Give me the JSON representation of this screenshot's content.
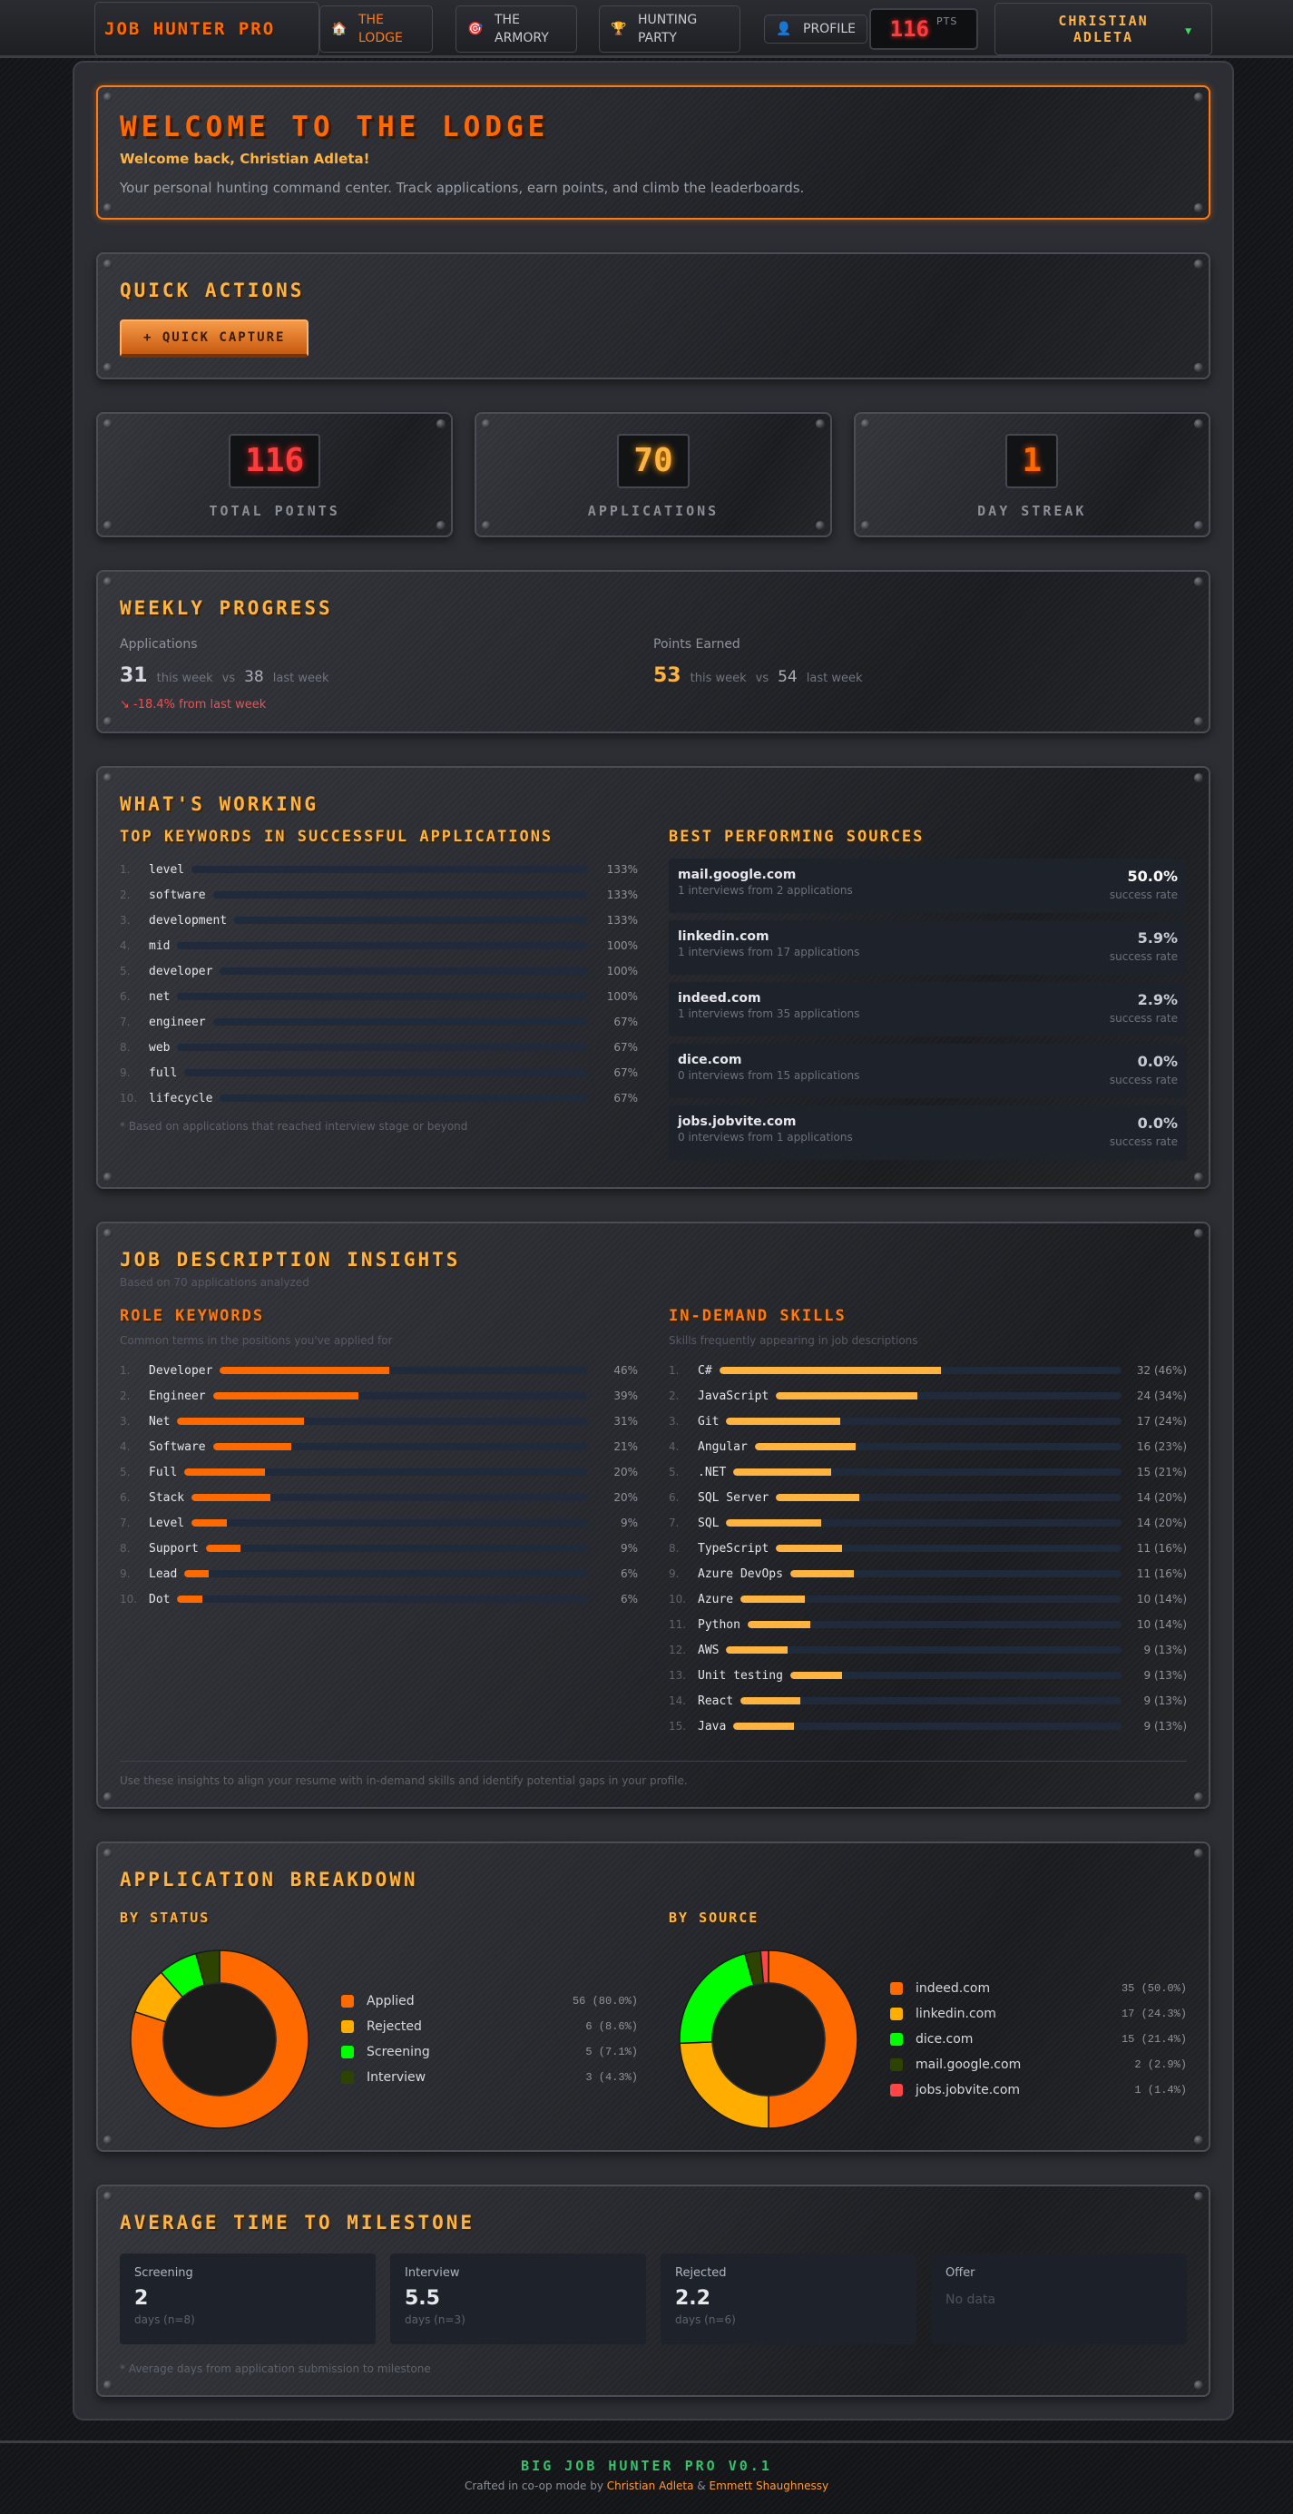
{
  "nav": {
    "brand": "JOB HUNTER PRO",
    "items": [
      {
        "label": "THE LODGE",
        "icon": "🏠",
        "active": true
      },
      {
        "label": "THE ARMORY",
        "icon": "🎯",
        "active": false
      },
      {
        "label": "HUNTING PARTY",
        "icon": "🏆",
        "active": false
      },
      {
        "label": "PROFILE",
        "icon": "👤",
        "active": false
      }
    ],
    "points": "116",
    "points_unit": "PTS",
    "user_name": "CHRISTIAN ADLETA",
    "user_caret": "▼"
  },
  "welcome": {
    "title": "WELCOME TO THE LODGE",
    "greeting": "Welcome back, Christian Adleta!",
    "description": "Your personal hunting command center. Track applications, earn points, and climb the leaderboards."
  },
  "quick_actions": {
    "title": "QUICK ACTIONS",
    "capture_label": "+ QUICK CAPTURE"
  },
  "stats": [
    {
      "value": "116",
      "label": "TOTAL POINTS",
      "color": "#ff3c3c"
    },
    {
      "value": "70",
      "label": "APPLICATIONS",
      "color": "#ffb340"
    },
    {
      "value": "1",
      "label": "DAY STREAK",
      "color": "#ff6a00"
    }
  ],
  "weekly": {
    "title": "WEEKLY PROGRESS",
    "applications": {
      "label": "Applications",
      "this_week": "31",
      "this_label": "this week",
      "vs": "vs",
      "last_week": "38",
      "last_label": "last week",
      "change": "↘ -18.4% from last week"
    },
    "points": {
      "label": "Points Earned",
      "this_week": "53",
      "this_label": "this week",
      "vs": "vs",
      "last_week": "54",
      "last_label": "last week"
    }
  },
  "working": {
    "title": "WHAT'S WORKING",
    "keywords_title": "TOP KEYWORDS IN SUCCESSFUL APPLICATIONS",
    "keywords": [
      {
        "idx": "1.",
        "word": "level",
        "pct": "133%"
      },
      {
        "idx": "2.",
        "word": "software",
        "pct": "133%"
      },
      {
        "idx": "3.",
        "word": "development",
        "pct": "133%"
      },
      {
        "idx": "4.",
        "word": "mid",
        "pct": "100%"
      },
      {
        "idx": "5.",
        "word": "developer",
        "pct": "100%"
      },
      {
        "idx": "6.",
        "word": "net",
        "pct": "100%"
      },
      {
        "idx": "7.",
        "word": "engineer",
        "pct": "67%"
      },
      {
        "idx": "8.",
        "word": "web",
        "pct": "67%"
      },
      {
        "idx": "9.",
        "word": "full",
        "pct": "67%"
      },
      {
        "idx": "10.",
        "word": "lifecycle",
        "pct": "67%"
      }
    ],
    "keywords_note": "* Based on applications that reached interview stage or beyond",
    "sources_title": "BEST PERFORMING SOURCES",
    "sources": [
      {
        "name": "mail.google.com",
        "detail": "1 interviews from 2 applications",
        "rate": "50.0%",
        "rate_label": "success rate"
      },
      {
        "name": "linkedin.com",
        "detail": "1 interviews from 17 applications",
        "rate": "5.9%",
        "rate_label": "success rate"
      },
      {
        "name": "indeed.com",
        "detail": "1 interviews from 35 applications",
        "rate": "2.9%",
        "rate_label": "success rate"
      },
      {
        "name": "dice.com",
        "detail": "0 interviews from 15 applications",
        "rate": "0.0%",
        "rate_label": "success rate"
      },
      {
        "name": "jobs.jobvite.com",
        "detail": "0 interviews from 1 applications",
        "rate": "0.0%",
        "rate_label": "success rate"
      }
    ]
  },
  "insights": {
    "title": "JOB DESCRIPTION INSIGHTS",
    "subtitle": "Based on 70 applications analyzed",
    "roles_title": "ROLE KEYWORDS",
    "roles_sub": "Common terms in the positions you've applied for",
    "roles": [
      {
        "idx": "1.",
        "word": "Developer",
        "pct": "46%",
        "v": 46
      },
      {
        "idx": "2.",
        "word": "Engineer",
        "pct": "39%",
        "v": 39
      },
      {
        "idx": "3.",
        "word": "Net",
        "pct": "31%",
        "v": 31
      },
      {
        "idx": "4.",
        "word": "Software",
        "pct": "21%",
        "v": 21
      },
      {
        "idx": "5.",
        "word": "Full",
        "pct": "20%",
        "v": 20
      },
      {
        "idx": "6.",
        "word": "Stack",
        "pct": "20%",
        "v": 20
      },
      {
        "idx": "7.",
        "word": "Level",
        "pct": "9%",
        "v": 9
      },
      {
        "idx": "8.",
        "word": "Support",
        "pct": "9%",
        "v": 9
      },
      {
        "idx": "9.",
        "word": "Lead",
        "pct": "6%",
        "v": 6
      },
      {
        "idx": "10.",
        "word": "Dot",
        "pct": "6%",
        "v": 6
      }
    ],
    "skills_title": "IN-DEMAND SKILLS",
    "skills_sub": "Skills frequently appearing in job descriptions",
    "skills": [
      {
        "idx": "1.",
        "word": "C#",
        "val": "32 (46%)",
        "v": 46
      },
      {
        "idx": "2.",
        "word": "JavaScript",
        "val": "24 (34%)",
        "v": 34
      },
      {
        "idx": "3.",
        "word": "Git",
        "val": "17 (24%)",
        "v": 24
      },
      {
        "idx": "4.",
        "word": "Angular",
        "val": "16 (23%)",
        "v": 23
      },
      {
        "idx": "5.",
        "word": ".NET",
        "val": "15 (21%)",
        "v": 21
      },
      {
        "idx": "6.",
        "word": "SQL Server",
        "val": "14 (20%)",
        "v": 20
      },
      {
        "idx": "7.",
        "word": "SQL",
        "val": "14 (20%)",
        "v": 20
      },
      {
        "idx": "8.",
        "word": "TypeScript",
        "val": "11 (16%)",
        "v": 16
      },
      {
        "idx": "9.",
        "word": "Azure DevOps",
        "val": "11 (16%)",
        "v": 16
      },
      {
        "idx": "10.",
        "word": "Azure",
        "val": "10 (14%)",
        "v": 14
      },
      {
        "idx": "11.",
        "word": "Python",
        "val": "10 (14%)",
        "v": 14
      },
      {
        "idx": "12.",
        "word": "AWS",
        "val": "9 (13%)",
        "v": 13
      },
      {
        "idx": "13.",
        "word": "Unit testing",
        "val": "9 (13%)",
        "v": 13
      },
      {
        "idx": "14.",
        "word": "React",
        "val": "9 (13%)",
        "v": 13
      },
      {
        "idx": "15.",
        "word": "Java",
        "val": "9 (13%)",
        "v": 13
      }
    ],
    "footer": "Use these insights to align your resume with in-demand skills and identify potential gaps in your profile."
  },
  "breakdown": {
    "title": "APPLICATION BREAKDOWN",
    "status_title": "BY STATUS",
    "source_title": "BY SOURCE"
  },
  "chart_data": [
    {
      "type": "pie",
      "title": "BY STATUS",
      "categories": [
        "Applied",
        "Rejected",
        "Screening",
        "Interview"
      ],
      "values": [
        56,
        6,
        5,
        3
      ],
      "labels": [
        "56 (80.0%)",
        "6 (8.6%)",
        "5 (7.1%)",
        "3 (4.3%)"
      ],
      "colors": [
        "#ff6a00",
        "#ffae00",
        "#00ff00",
        "#2d4400"
      ],
      "legend_position": "right"
    },
    {
      "type": "pie",
      "title": "BY SOURCE",
      "categories": [
        "indeed.com",
        "linkedin.com",
        "dice.com",
        "mail.google.com",
        "jobs.jobvite.com"
      ],
      "values": [
        35,
        17,
        15,
        2,
        1
      ],
      "labels": [
        "35 (50.0%)",
        "17 (24.3%)",
        "15 (21.4%)",
        "2 (2.9%)",
        "1 (1.4%)"
      ],
      "colors": [
        "#ff6a00",
        "#ffae00",
        "#00ff00",
        "#2d4400",
        "#ff4545"
      ],
      "legend_position": "right"
    }
  ],
  "milestones": {
    "title": "AVERAGE TIME TO MILESTONE",
    "items": [
      {
        "label": "Screening",
        "value": "2",
        "note": "days (n=8)"
      },
      {
        "label": "Interview",
        "value": "5.5",
        "note": "days (n=3)"
      },
      {
        "label": "Rejected",
        "value": "2.2",
        "note": "days (n=6)"
      },
      {
        "label": "Offer",
        "value": "",
        "note": "",
        "empty": "No data"
      }
    ],
    "footnote": "* Average days from application submission to milestone"
  },
  "footer": {
    "version": "BIG JOB HUNTER PRO V0.1",
    "credit_prefix": "Crafted in co-op mode by ",
    "author1": "Christian Adleta",
    "amp": " & ",
    "author2": "Emmett Shaughnessy"
  }
}
